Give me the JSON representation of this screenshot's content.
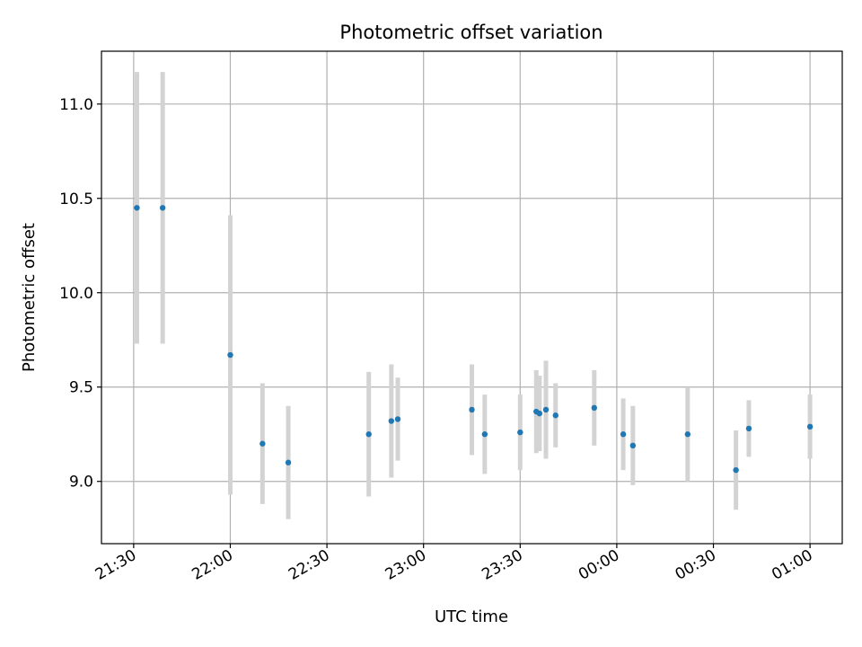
{
  "chart_data": {
    "type": "scatter",
    "title": "Photometric offset variation",
    "xlabel": "UTC time",
    "ylabel": "Photometric offset",
    "x_unit": "UTC time",
    "xlim": [
      "21:20",
      "01:10"
    ],
    "ylim": [
      8.67,
      11.28
    ],
    "grid": true,
    "x_ticks": [
      "21:30",
      "22:00",
      "22:30",
      "23:00",
      "23:30",
      "00:00",
      "00:30",
      "01:00"
    ],
    "y_ticks": [
      "9.0",
      "9.5",
      "10.0",
      "10.5",
      "11.0"
    ],
    "y_tick_values": [
      9.0,
      9.5,
      10.0,
      10.5,
      11.0
    ],
    "colors": {
      "points": "#1f77b4",
      "errorbars": "#d3d3d3",
      "grid": "#b0b0b0"
    },
    "points": [
      {
        "x": "21:31",
        "y": 10.45,
        "yerr": 0.72
      },
      {
        "x": "21:39",
        "y": 10.45,
        "yerr": 0.72
      },
      {
        "x": "22:00",
        "y": 9.67,
        "yerr": 0.74
      },
      {
        "x": "22:10",
        "y": 9.2,
        "yerr": 0.32
      },
      {
        "x": "22:18",
        "y": 9.1,
        "yerr": 0.3
      },
      {
        "x": "22:43",
        "y": 9.25,
        "yerr": 0.33
      },
      {
        "x": "22:50",
        "y": 9.32,
        "yerr": 0.3
      },
      {
        "x": "22:52",
        "y": 9.33,
        "yerr": 0.22
      },
      {
        "x": "23:15",
        "y": 9.38,
        "yerr": 0.24
      },
      {
        "x": "23:19",
        "y": 9.25,
        "yerr": 0.21
      },
      {
        "x": "23:30",
        "y": 9.26,
        "yerr": 0.2
      },
      {
        "x": "23:35",
        "y": 9.37,
        "yerr": 0.22
      },
      {
        "x": "23:36",
        "y": 9.36,
        "yerr": 0.2
      },
      {
        "x": "23:38",
        "y": 9.38,
        "yerr": 0.26
      },
      {
        "x": "23:41",
        "y": 9.35,
        "yerr": 0.17
      },
      {
        "x": "23:53",
        "y": 9.39,
        "yerr": 0.2
      },
      {
        "x": "00:02",
        "y": 9.25,
        "yerr": 0.19
      },
      {
        "x": "00:05",
        "y": 9.19,
        "yerr": 0.21
      },
      {
        "x": "00:22",
        "y": 9.25,
        "yerr": 0.25
      },
      {
        "x": "00:37",
        "y": 9.06,
        "yerr": 0.21
      },
      {
        "x": "00:41",
        "y": 9.28,
        "yerr": 0.15
      },
      {
        "x": "01:00",
        "y": 9.29,
        "yerr": 0.17
      }
    ]
  }
}
